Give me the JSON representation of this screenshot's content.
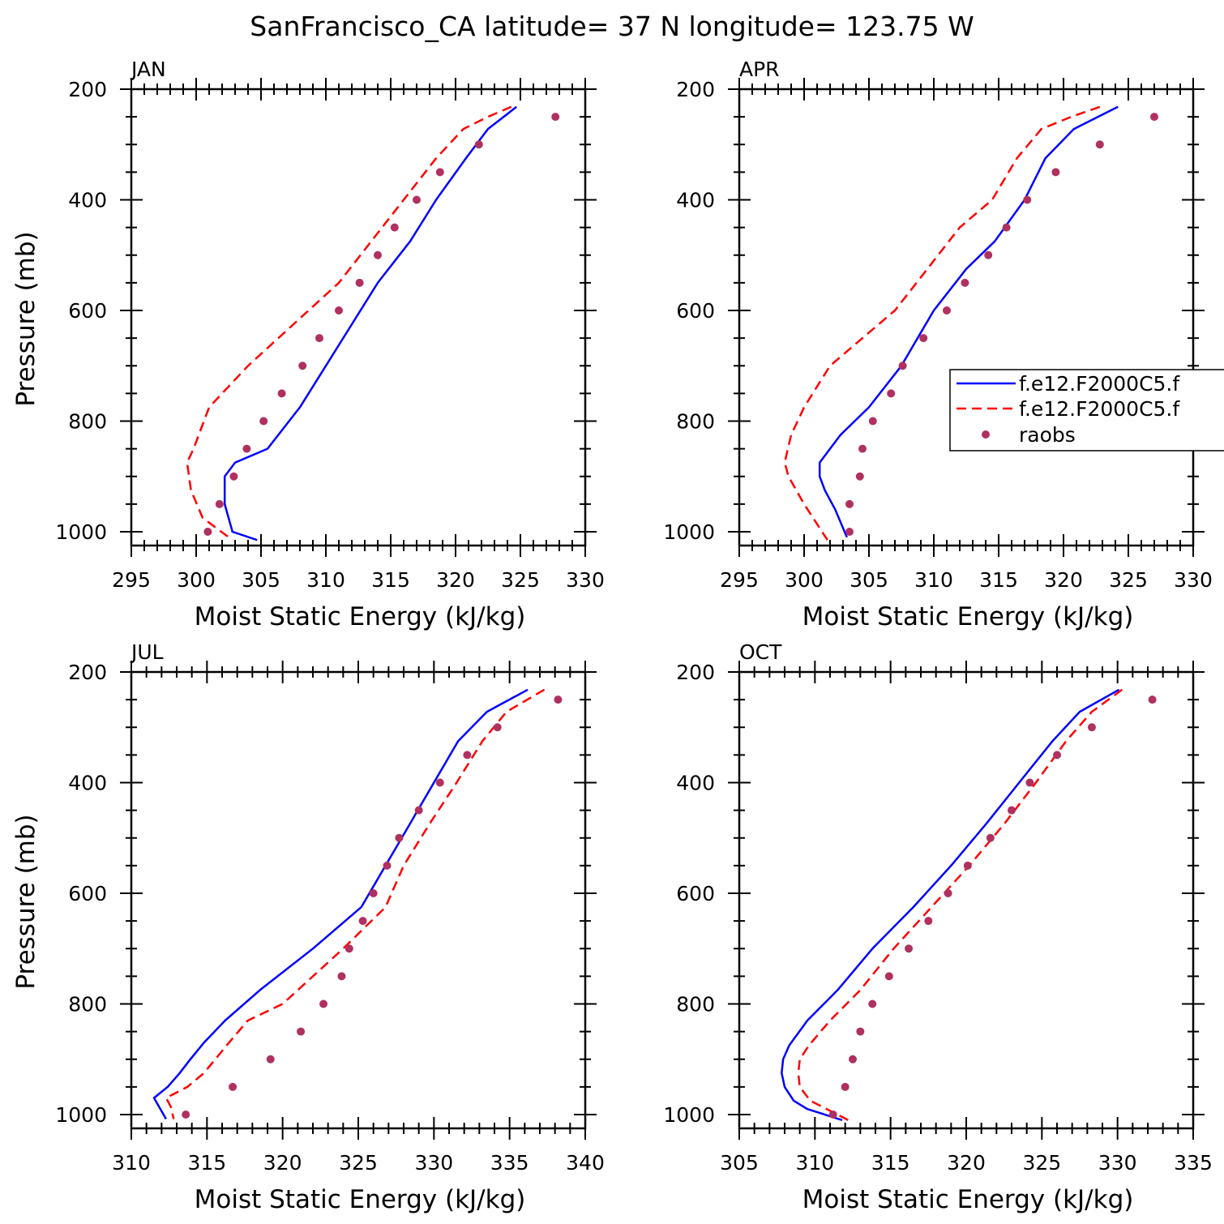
{
  "figure_title": "SanFrancisco_CA  latitude= 37 N longitude= 123.75 W",
  "legend": {
    "entries": [
      {
        "label": "f.e12.F2000C5.f",
        "style": "solid",
        "color": "#0000ff"
      },
      {
        "label": "f.e12.F2000C5.f",
        "style": "dashed",
        "color": "#ff0000"
      },
      {
        "label": "raobs",
        "style": "dots",
        "color": "#b03060"
      }
    ]
  },
  "colors": {
    "model_solid": "#0000ff",
    "model_dashed": "#ff0000",
    "raobs": "#b03060"
  },
  "chart_data": [
    {
      "type": "line",
      "title": "JAN",
      "xlabel": "Moist Static Energy (kJ/kg)",
      "ylabel": "Pressure (mb)",
      "xlim": [
        295,
        330
      ],
      "xticks": [
        295,
        300,
        305,
        310,
        315,
        320,
        325,
        330
      ],
      "ylim": [
        1025,
        200
      ],
      "yticks": [
        200,
        400,
        600,
        800,
        1000
      ],
      "series": [
        {
          "name": "f.e12.F2000C5.f",
          "style": "solid",
          "x": [
            324.7,
            322.5,
            320.8,
            318.5,
            316.5,
            314.0,
            312.0,
            310.0,
            308.0,
            305.5,
            303.0,
            302.2,
            302.2,
            302.8,
            304.7
          ],
          "y": [
            232,
            272,
            325,
            400,
            475,
            550,
            625,
            700,
            775,
            850,
            875,
            900,
            950,
            1000,
            1015
          ]
        },
        {
          "name": "f.e12.F2000C5.f",
          "style": "dashed",
          "x": [
            324.3,
            322.5,
            320.6,
            318.5,
            316.0,
            313.5,
            311.0,
            307.5,
            304.0,
            301.0,
            299.8,
            299.3,
            299.6,
            300.5,
            302.8
          ],
          "y": [
            232,
            250,
            272,
            325,
            400,
            475,
            550,
            625,
            700,
            775,
            850,
            875,
            925,
            975,
            1015
          ]
        },
        {
          "name": "raobs",
          "style": "dots",
          "x": [
            327.7,
            321.8,
            318.8,
            317.0,
            315.3,
            314.0,
            312.6,
            311.0,
            309.5,
            308.2,
            306.6,
            305.2,
            303.9,
            302.9,
            301.8,
            300.9
          ],
          "y": [
            250,
            300,
            350,
            400,
            450,
            500,
            550,
            600,
            650,
            700,
            750,
            800,
            850,
            900,
            950,
            1000
          ]
        }
      ]
    },
    {
      "type": "line",
      "title": "APR",
      "xlabel": "Moist Static Energy (kJ/kg)",
      "ylabel": "",
      "xlim": [
        295,
        330
      ],
      "xticks": [
        295,
        300,
        305,
        310,
        315,
        320,
        325,
        330
      ],
      "ylim": [
        1025,
        200
      ],
      "yticks": [
        200,
        400,
        600,
        800,
        1000
      ],
      "series": [
        {
          "name": "f.e12.F2000C5.f",
          "style": "solid",
          "x": [
            324.2,
            320.8,
            318.6,
            317.0,
            314.7,
            312.5,
            310.0,
            307.5,
            305.0,
            302.8,
            302.0,
            301.2,
            301.2,
            301.6,
            302.4,
            303.3
          ],
          "y": [
            232,
            272,
            325,
            400,
            475,
            525,
            600,
            700,
            775,
            825,
            850,
            875,
            900,
            925,
            960,
            1010
          ]
        },
        {
          "name": "f.e12.F2000C5.f",
          "style": "dashed",
          "x": [
            322.8,
            320.6,
            318.3,
            316.4,
            314.5,
            312.0,
            309.5,
            307.0,
            304.5,
            302.0,
            300.0,
            299.0,
            298.5,
            298.8,
            300.0,
            301.8
          ],
          "y": [
            232,
            250,
            272,
            325,
            400,
            450,
            525,
            600,
            650,
            700,
            775,
            825,
            875,
            900,
            950,
            1015
          ]
        },
        {
          "name": "raobs",
          "style": "dots",
          "x": [
            327.0,
            322.8,
            319.4,
            317.2,
            315.6,
            314.2,
            312.4,
            311.0,
            309.2,
            307.6,
            306.7,
            305.3,
            304.5,
            304.3,
            303.5,
            303.5
          ],
          "y": [
            250,
            300,
            350,
            400,
            450,
            500,
            550,
            600,
            650,
            700,
            750,
            800,
            850,
            900,
            950,
            1000
          ]
        }
      ]
    },
    {
      "type": "line",
      "title": "JUL",
      "xlabel": "Moist Static Energy (kJ/kg)",
      "ylabel": "Pressure (mb)",
      "xlim": [
        310,
        340
      ],
      "xticks": [
        310,
        315,
        320,
        325,
        330,
        335,
        340
      ],
      "ylim": [
        1025,
        200
      ],
      "yticks": [
        200,
        400,
        600,
        800,
        1000
      ],
      "series": [
        {
          "name": "f.e12.F2000C5.f",
          "style": "solid",
          "x": [
            336.2,
            333.5,
            331.6,
            330.0,
            328.4,
            326.8,
            325.2,
            322.0,
            318.5,
            316.2,
            314.8,
            313.9,
            313.2,
            312.4,
            311.5,
            312.3
          ],
          "y": [
            232,
            272,
            325,
            400,
            475,
            550,
            625,
            700,
            775,
            830,
            870,
            900,
            925,
            950,
            970,
            1008
          ]
        },
        {
          "name": "f.e12.F2000C5.f",
          "style": "dashed",
          "x": [
            337.3,
            334.8,
            333.2,
            331.5,
            329.7,
            328.0,
            326.8,
            324.0,
            320.0,
            317.7,
            316.3,
            314.8,
            313.7,
            312.3,
            312.6,
            312.8
          ],
          "y": [
            232,
            272,
            325,
            400,
            475,
            550,
            625,
            700,
            800,
            830,
            875,
            925,
            950,
            970,
            985,
            1008
          ]
        },
        {
          "name": "raobs",
          "style": "dots",
          "x": [
            338.2,
            334.2,
            332.2,
            330.4,
            329.0,
            327.7,
            326.9,
            326.0,
            325.3,
            324.4,
            323.9,
            322.7,
            321.2,
            319.2,
            316.7,
            313.6
          ],
          "y": [
            250,
            300,
            350,
            400,
            450,
            500,
            550,
            600,
            650,
            700,
            750,
            800,
            850,
            900,
            950,
            1000
          ]
        }
      ]
    },
    {
      "type": "line",
      "title": "OCT",
      "xlabel": "Moist Static Energy (kJ/kg)",
      "ylabel": "",
      "xlim": [
        305,
        335
      ],
      "xticks": [
        305,
        310,
        315,
        320,
        325,
        330,
        335
      ],
      "ylim": [
        1025,
        200
      ],
      "yticks": [
        200,
        400,
        600,
        800,
        1000
      ],
      "series": [
        {
          "name": "f.e12.F2000C5.f",
          "style": "solid",
          "x": [
            330.1,
            327.5,
            325.7,
            323.5,
            321.3,
            319.0,
            316.5,
            313.8,
            311.5,
            309.5,
            308.3,
            307.9,
            307.8,
            308.0,
            308.6,
            309.5,
            311.8
          ],
          "y": [
            232,
            272,
            325,
            400,
            475,
            550,
            625,
            700,
            775,
            830,
            875,
            900,
            925,
            950,
            975,
            990,
            1010
          ]
        },
        {
          "name": "f.e12.F2000C5.f",
          "style": "dashed",
          "x": [
            330.3,
            328.3,
            326.6,
            324.6,
            322.5,
            320.2,
            317.7,
            315.2,
            313.0,
            311.0,
            309.6,
            309.0,
            308.9,
            309.0,
            309.7,
            312.2
          ],
          "y": [
            232,
            272,
            325,
            400,
            475,
            550,
            625,
            700,
            775,
            830,
            875,
            900,
            925,
            950,
            975,
            1010
          ]
        },
        {
          "name": "raobs",
          "style": "dots",
          "x": [
            332.3,
            328.3,
            326.0,
            324.2,
            323.0,
            321.6,
            320.1,
            318.8,
            317.5,
            316.2,
            314.9,
            313.8,
            313.0,
            312.5,
            312.0,
            311.2
          ],
          "y": [
            250,
            300,
            350,
            400,
            450,
            500,
            550,
            600,
            650,
            700,
            750,
            800,
            850,
            900,
            950,
            1000
          ]
        }
      ]
    }
  ]
}
